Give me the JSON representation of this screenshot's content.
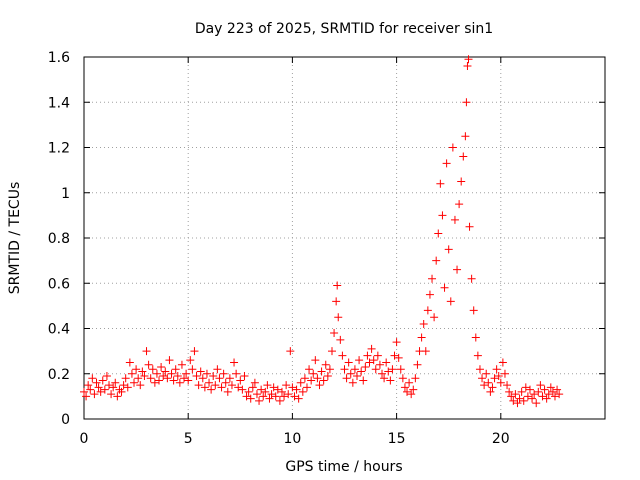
{
  "chart_data": {
    "type": "scatter",
    "title": "Day 223 of 2025, SRMTID for receiver sin1",
    "xlabel": "GPS time / hours",
    "ylabel": "SRMTID / TECUs",
    "xlim": [
      0,
      25
    ],
    "ylim": [
      0,
      1.6
    ],
    "xticks": [
      0,
      5,
      10,
      15,
      20
    ],
    "xtick_labels": [
      "0",
      "5",
      "10",
      "15",
      "20"
    ],
    "yticks": [
      0,
      0.2,
      0.4,
      0.6,
      0.8,
      1.0,
      1.2,
      1.4,
      1.6
    ],
    "ytick_labels": [
      "0",
      "0.2",
      "0.4",
      "0.6",
      "0.8",
      "1",
      "1.2",
      "1.4",
      "1.6"
    ],
    "grid": true,
    "marker": "+",
    "color": "#ff0000",
    "series": [
      {
        "name": "sin1",
        "points": [
          [
            0.0,
            0.12
          ],
          [
            0.1,
            0.1
          ],
          [
            0.2,
            0.15
          ],
          [
            0.3,
            0.13
          ],
          [
            0.4,
            0.18
          ],
          [
            0.5,
            0.11
          ],
          [
            0.6,
            0.16
          ],
          [
            0.7,
            0.14
          ],
          [
            0.8,
            0.12
          ],
          [
            0.9,
            0.17
          ],
          [
            1.0,
            0.13
          ],
          [
            1.1,
            0.19
          ],
          [
            1.2,
            0.15
          ],
          [
            1.3,
            0.11
          ],
          [
            1.4,
            0.14
          ],
          [
            1.5,
            0.16
          ],
          [
            1.6,
            0.1
          ],
          [
            1.7,
            0.13
          ],
          [
            1.8,
            0.12
          ],
          [
            1.9,
            0.15
          ],
          [
            2.0,
            0.18
          ],
          [
            2.1,
            0.14
          ],
          [
            2.2,
            0.25
          ],
          [
            2.3,
            0.2
          ],
          [
            2.4,
            0.16
          ],
          [
            2.5,
            0.22
          ],
          [
            2.6,
            0.18
          ],
          [
            2.7,
            0.15
          ],
          [
            2.8,
            0.21
          ],
          [
            2.9,
            0.19
          ],
          [
            3.0,
            0.3
          ],
          [
            3.1,
            0.24
          ],
          [
            3.2,
            0.18
          ],
          [
            3.3,
            0.22
          ],
          [
            3.4,
            0.16
          ],
          [
            3.5,
            0.2
          ],
          [
            3.6,
            0.17
          ],
          [
            3.7,
            0.23
          ],
          [
            3.8,
            0.19
          ],
          [
            3.9,
            0.21
          ],
          [
            4.0,
            0.18
          ],
          [
            4.1,
            0.26
          ],
          [
            4.2,
            0.2
          ],
          [
            4.3,
            0.17
          ],
          [
            4.4,
            0.22
          ],
          [
            4.5,
            0.19
          ],
          [
            4.6,
            0.16
          ],
          [
            4.7,
            0.24
          ],
          [
            4.8,
            0.18
          ],
          [
            4.9,
            0.2
          ],
          [
            5.0,
            0.17
          ],
          [
            5.1,
            0.26
          ],
          [
            5.2,
            0.22
          ],
          [
            5.3,
            0.3
          ],
          [
            5.4,
            0.19
          ],
          [
            5.5,
            0.15
          ],
          [
            5.6,
            0.21
          ],
          [
            5.7,
            0.18
          ],
          [
            5.8,
            0.14
          ],
          [
            5.9,
            0.2
          ],
          [
            6.0,
            0.16
          ],
          [
            6.1,
            0.13
          ],
          [
            6.2,
            0.19
          ],
          [
            6.3,
            0.15
          ],
          [
            6.4,
            0.22
          ],
          [
            6.5,
            0.18
          ],
          [
            6.6,
            0.14
          ],
          [
            6.7,
            0.2
          ],
          [
            6.8,
            0.16
          ],
          [
            6.9,
            0.12
          ],
          [
            7.0,
            0.18
          ],
          [
            7.1,
            0.15
          ],
          [
            7.2,
            0.25
          ],
          [
            7.3,
            0.2
          ],
          [
            7.4,
            0.14
          ],
          [
            7.5,
            0.17
          ],
          [
            7.6,
            0.13
          ],
          [
            7.7,
            0.19
          ],
          [
            7.8,
            0.1
          ],
          [
            7.9,
            0.12
          ],
          [
            8.0,
            0.09
          ],
          [
            8.1,
            0.14
          ],
          [
            8.2,
            0.16
          ],
          [
            8.3,
            0.11
          ],
          [
            8.4,
            0.08
          ],
          [
            8.5,
            0.13
          ],
          [
            8.6,
            0.1
          ],
          [
            8.7,
            0.12
          ],
          [
            8.8,
            0.15
          ],
          [
            8.9,
            0.09
          ],
          [
            9.0,
            0.11
          ],
          [
            9.1,
            0.14
          ],
          [
            9.2,
            0.1
          ],
          [
            9.3,
            0.13
          ],
          [
            9.4,
            0.08
          ],
          [
            9.5,
            0.12
          ],
          [
            9.6,
            0.1
          ],
          [
            9.7,
            0.15
          ],
          [
            9.8,
            0.11
          ],
          [
            9.9,
            0.3
          ],
          [
            10.0,
            0.14
          ],
          [
            10.1,
            0.1
          ],
          [
            10.2,
            0.13
          ],
          [
            10.3,
            0.09
          ],
          [
            10.4,
            0.16
          ],
          [
            10.5,
            0.12
          ],
          [
            10.6,
            0.18
          ],
          [
            10.7,
            0.14
          ],
          [
            10.8,
            0.22
          ],
          [
            10.9,
            0.17
          ],
          [
            11.0,
            0.2
          ],
          [
            11.1,
            0.26
          ],
          [
            11.2,
            0.18
          ],
          [
            11.3,
            0.15
          ],
          [
            11.4,
            0.21
          ],
          [
            11.5,
            0.17
          ],
          [
            11.6,
            0.24
          ],
          [
            11.7,
            0.19
          ],
          [
            11.8,
            0.22
          ],
          [
            11.9,
            0.3
          ],
          [
            12.0,
            0.38
          ],
          [
            12.1,
            0.52
          ],
          [
            12.15,
            0.59
          ],
          [
            12.2,
            0.45
          ],
          [
            12.3,
            0.35
          ],
          [
            12.4,
            0.28
          ],
          [
            12.5,
            0.22
          ],
          [
            12.6,
            0.18
          ],
          [
            12.7,
            0.25
          ],
          [
            12.8,
            0.2
          ],
          [
            12.9,
            0.16
          ],
          [
            13.0,
            0.22
          ],
          [
            13.1,
            0.19
          ],
          [
            13.2,
            0.26
          ],
          [
            13.3,
            0.21
          ],
          [
            13.4,
            0.17
          ],
          [
            13.5,
            0.23
          ],
          [
            13.6,
            0.28
          ],
          [
            13.7,
            0.25
          ],
          [
            13.8,
            0.31
          ],
          [
            13.9,
            0.26
          ],
          [
            14.0,
            0.22
          ],
          [
            14.1,
            0.28
          ],
          [
            14.2,
            0.24
          ],
          [
            14.3,
            0.2
          ],
          [
            14.4,
            0.18
          ],
          [
            14.5,
            0.25
          ],
          [
            14.6,
            0.21
          ],
          [
            14.7,
            0.17
          ],
          [
            14.8,
            0.22
          ],
          [
            14.9,
            0.28
          ],
          [
            15.0,
            0.34
          ],
          [
            15.1,
            0.27
          ],
          [
            15.2,
            0.22
          ],
          [
            15.3,
            0.18
          ],
          [
            15.4,
            0.14
          ],
          [
            15.5,
            0.12
          ],
          [
            15.6,
            0.16
          ],
          [
            15.7,
            0.11
          ],
          [
            15.8,
            0.13
          ],
          [
            15.9,
            0.18
          ],
          [
            16.0,
            0.24
          ],
          [
            16.1,
            0.3
          ],
          [
            16.2,
            0.36
          ],
          [
            16.3,
            0.42
          ],
          [
            16.4,
            0.3
          ],
          [
            16.5,
            0.48
          ],
          [
            16.6,
            0.55
          ],
          [
            16.7,
            0.62
          ],
          [
            16.8,
            0.45
          ],
          [
            16.9,
            0.7
          ],
          [
            17.0,
            0.82
          ],
          [
            17.1,
            1.04
          ],
          [
            17.2,
            0.9
          ],
          [
            17.3,
            0.58
          ],
          [
            17.4,
            1.13
          ],
          [
            17.5,
            0.75
          ],
          [
            17.6,
            0.52
          ],
          [
            17.7,
            1.2
          ],
          [
            17.8,
            0.88
          ],
          [
            17.9,
            0.66
          ],
          [
            18.0,
            0.95
          ],
          [
            18.1,
            1.05
          ],
          [
            18.2,
            1.16
          ],
          [
            18.3,
            1.25
          ],
          [
            18.35,
            1.4
          ],
          [
            18.4,
            1.56
          ],
          [
            18.45,
            1.59
          ],
          [
            18.5,
            0.85
          ],
          [
            18.6,
            0.62
          ],
          [
            18.7,
            0.48
          ],
          [
            18.8,
            0.36
          ],
          [
            18.9,
            0.28
          ],
          [
            19.0,
            0.22
          ],
          [
            19.1,
            0.18
          ],
          [
            19.2,
            0.15
          ],
          [
            19.3,
            0.2
          ],
          [
            19.4,
            0.16
          ],
          [
            19.5,
            0.12
          ],
          [
            19.6,
            0.14
          ],
          [
            19.7,
            0.18
          ],
          [
            19.8,
            0.22
          ],
          [
            19.9,
            0.19
          ],
          [
            20.0,
            0.16
          ],
          [
            20.1,
            0.25
          ],
          [
            20.2,
            0.2
          ],
          [
            20.3,
            0.15
          ],
          [
            20.4,
            0.12
          ],
          [
            20.5,
            0.1
          ],
          [
            20.6,
            0.08
          ],
          [
            20.7,
            0.11
          ],
          [
            20.8,
            0.07
          ],
          [
            20.9,
            0.09
          ],
          [
            21.0,
            0.12
          ],
          [
            21.1,
            0.08
          ],
          [
            21.2,
            0.14
          ],
          [
            21.3,
            0.1
          ],
          [
            21.4,
            0.13
          ],
          [
            21.5,
            0.09
          ],
          [
            21.6,
            0.11
          ],
          [
            21.7,
            0.07
          ],
          [
            21.8,
            0.12
          ],
          [
            21.9,
            0.15
          ],
          [
            22.0,
            0.1
          ],
          [
            22.1,
            0.13
          ],
          [
            22.2,
            0.09
          ],
          [
            22.3,
            0.11
          ],
          [
            22.4,
            0.14
          ],
          [
            22.5,
            0.12
          ],
          [
            22.6,
            0.1
          ],
          [
            22.7,
            0.13
          ],
          [
            22.8,
            0.11
          ]
        ]
      }
    ]
  }
}
